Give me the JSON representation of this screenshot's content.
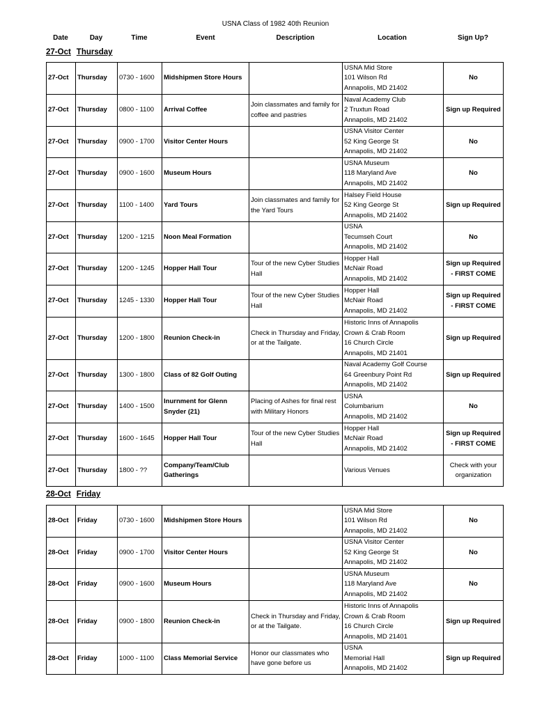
{
  "title": "USNA Class of 1982 40th Reunion",
  "columns": [
    "Date",
    "Day",
    "Time",
    "Event",
    "Description",
    "Location",
    "Sign Up?"
  ],
  "sections": [
    {
      "date": "27-Oct",
      "day": "Thursday",
      "rows": [
        {
          "date": "27-Oct",
          "day": "Thursday",
          "time": "0730 - 1600",
          "event": "Midshipmen Store Hours",
          "description": "",
          "location": [
            "USNA Mid Store",
            "101 Wilson Rd",
            "Annapolis, MD 21402"
          ],
          "signup": "No"
        },
        {
          "date": "27-Oct",
          "day": "Thursday",
          "time": "0800 - 1100",
          "event": "Arrival Coffee",
          "description": "Join classmates and family for coffee and pastries",
          "location": [
            "Naval Academy Club",
            "2 Truxtun Road",
            "Annapolis, MD 21402"
          ],
          "signup": "Sign up Required"
        },
        {
          "date": "27-Oct",
          "day": "Thursday",
          "time": "0900 - 1700",
          "event": "Visitor Center Hours",
          "description": "",
          "location": [
            "USNA Visitor Center",
            "52 King George St",
            "Annapolis, MD 21402"
          ],
          "signup": "No"
        },
        {
          "date": "27-Oct",
          "day": "Thursday",
          "time": "0900 - 1600",
          "event": "Museum Hours",
          "description": "",
          "location": [
            "USNA Museum",
            "118 Maryland Ave",
            "Annapolis, MD 21402"
          ],
          "signup": "No"
        },
        {
          "date": "27-Oct",
          "day": "Thursday",
          "time": "1100 - 1400",
          "event": "Yard Tours",
          "description": "Join classmates and family for the Yard Tours",
          "location": [
            "Halsey Field House",
            "52 King George St",
            "Annapolis, MD 21402"
          ],
          "signup": "Sign up Required"
        },
        {
          "date": "27-Oct",
          "day": "Thursday",
          "time": "1200 - 1215",
          "event": "Noon Meal Formation",
          "description": "",
          "location": [
            "USNA",
            "Tecumseh Court",
            "Annapolis, MD 21402"
          ],
          "signup": "No"
        },
        {
          "date": "27-Oct",
          "day": "Thursday",
          "time": "1200 - 1245",
          "event": "Hopper Hall Tour",
          "description": "Tour of the new Cyber Studies Hall",
          "location": [
            "Hopper Hall",
            "McNair Road",
            "Annapolis, MD 21402"
          ],
          "signup": "Sign up Required - FIRST COME"
        },
        {
          "date": "27-Oct",
          "day": "Thursday",
          "time": "1245 - 1330",
          "event": "Hopper Hall Tour",
          "description": "Tour of the new Cyber Studies Hall",
          "location": [
            "Hopper Hall",
            "McNair Road",
            "Annapolis, MD 21402"
          ],
          "signup": "Sign up Required - FIRST COME"
        },
        {
          "date": "27-Oct",
          "day": "Thursday",
          "time": "1200 - 1800",
          "event": "Reunion Check-in",
          "description": "Check in Thursday and Friday, or at the Tailgate.",
          "location": [
            "Historic Inns of Annapolis",
            "Crown & Crab Room",
            "16 Church Circle",
            "Annapolis, MD 21401"
          ],
          "signup": "Sign up Required"
        },
        {
          "date": "27-Oct",
          "day": "Thursday",
          "time": "1300 - 1800",
          "event": "Class of 82 Golf Outing",
          "description": "",
          "location": [
            "Naval Academy Golf Course",
            "64 Greenbury Point Rd",
            "Annapolis, MD 21402"
          ],
          "signup": "Sign up Required"
        },
        {
          "date": "27-Oct",
          "day": "Thursday",
          "time": "1400 - 1500",
          "event": "Inurnment for Glenn Snyder (21)",
          "description": "Placing of Ashes for final rest with Military Honors",
          "location": [
            "USNA",
            "Columbarium",
            "Annapolis, MD 21402"
          ],
          "signup": "No"
        },
        {
          "date": "27-Oct",
          "day": "Thursday",
          "time": "1600 - 1645",
          "event": "Hopper Hall Tour",
          "description": "Tour of the new Cyber Studies Hall",
          "location": [
            "Hopper Hall",
            "McNair Road",
            "Annapolis, MD 21402"
          ],
          "signup": "Sign up Required - FIRST COME"
        },
        {
          "date": "27-Oct",
          "day": "Thursday",
          "time": "1800 - ??",
          "event": "Company/Team/Club Gatherings",
          "description": "",
          "location": [
            "Various Venues"
          ],
          "signup": "Check with your organization"
        }
      ]
    },
    {
      "date": "28-Oct",
      "day": "Friday",
      "rows": [
        {
          "date": "28-Oct",
          "day": "Friday",
          "time": "0730 - 1600",
          "event": "Midshipmen Store Hours",
          "description": "",
          "location": [
            "USNA Mid Store",
            "101 Wilson Rd",
            "Annapolis, MD 21402"
          ],
          "signup": "No"
        },
        {
          "date": "28-Oct",
          "day": "Friday",
          "time": "0900 - 1700",
          "event": "Visitor Center Hours",
          "description": "",
          "location": [
            "USNA Visitor Center",
            "52 King George St",
            "Annapolis, MD 21402"
          ],
          "signup": "No"
        },
        {
          "date": "28-Oct",
          "day": "Friday",
          "time": "0900 - 1600",
          "event": "Museum Hours",
          "description": "",
          "location": [
            "USNA Museum",
            "118 Maryland Ave",
            "Annapolis, MD 21402"
          ],
          "signup": "No"
        },
        {
          "date": "28-Oct",
          "day": "Friday",
          "time": "0900 - 1800",
          "event": "Reunion Check-in",
          "description": "Check in Thursday and Friday, or at the Tailgate.",
          "location": [
            "Historic Inns of Annapolis",
            "Crown & Crab Room",
            "16 Church Circle",
            "Annapolis, MD 21401"
          ],
          "signup": "Sign up Required"
        },
        {
          "date": "28-Oct",
          "day": "Friday",
          "time": "1000 - 1100",
          "event": "Class Memorial Service",
          "description": "Honor our classmates who have gone before us",
          "location": [
            "USNA",
            "Memorial Hall",
            "Annapolis, MD 21402"
          ],
          "signup": "Sign up Required"
        }
      ]
    }
  ]
}
